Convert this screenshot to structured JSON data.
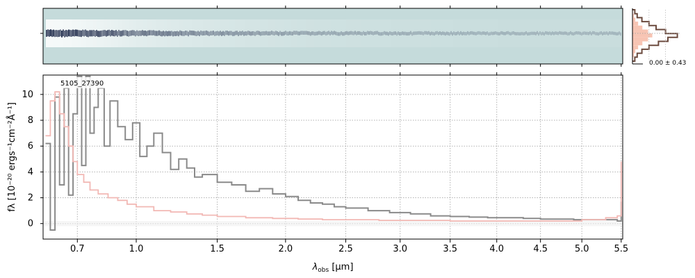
{
  "chart_data": [
    {
      "type": "heatmap",
      "panel": "2d-spectrum",
      "description_colors": {
        "background": "#c5dbdb",
        "trace_dark": "#1e2a4a",
        "trace_light": "#ffffff"
      },
      "trace_strength": [
        {
          "x": 0.55,
          "v": 1.0
        },
        {
          "x": 0.65,
          "v": 0.95
        },
        {
          "x": 0.75,
          "v": 0.85
        },
        {
          "x": 0.85,
          "v": 0.75
        },
        {
          "x": 1.0,
          "v": 0.6
        },
        {
          "x": 1.3,
          "v": 0.45
        },
        {
          "x": 1.7,
          "v": 0.32
        },
        {
          "x": 2.2,
          "v": 0.22
        },
        {
          "x": 3.0,
          "v": 0.15
        },
        {
          "x": 4.0,
          "v": 0.1
        },
        {
          "x": 5.0,
          "v": 0.08
        },
        {
          "x": 5.5,
          "v": 0.08
        }
      ]
    },
    {
      "type": "line",
      "panel": "1d-spectrum",
      "annotation": "5105_27390",
      "xlabel_math": {
        "base": "λ",
        "sub": "obs",
        "rest": " [μm]"
      },
      "ylabel_math": "fλ [10⁻²⁰ ergs⁻¹cm⁻²Å⁻¹]",
      "xlim": [
        0.55,
        5.52
      ],
      "ylim": [
        -1.2,
        11.5
      ],
      "x_ticks": [
        0.7,
        1.0,
        1.5,
        2.0,
        2.5,
        3.0,
        3.5,
        4.0,
        4.5,
        5.0,
        5.5
      ],
      "x_tick_labels": [
        "0.7",
        "1.0",
        "1.5",
        "2.0",
        "2.5",
        "3.0",
        "3.5",
        "4.0",
        "4.5",
        "5.0",
        "5.5"
      ],
      "y_ticks": [
        0,
        2,
        4,
        6,
        8,
        10
      ],
      "y_tick_labels": [
        "0",
        "2",
        "4",
        "6",
        "8",
        "10"
      ],
      "grid": true,
      "colors": {
        "data": "#8a8a8a",
        "model": "#f2b8b4"
      },
      "series": [
        {
          "name": "",
          "role": "data",
          "x": [
            0.56,
            0.58,
            0.6,
            0.62,
            0.64,
            0.66,
            0.68,
            0.7,
            0.72,
            0.74,
            0.76,
            0.78,
            0.8,
            0.83,
            0.86,
            0.9,
            0.94,
            0.98,
            1.02,
            1.06,
            1.1,
            1.15,
            1.2,
            1.25,
            1.3,
            1.35,
            1.4,
            1.5,
            1.6,
            1.7,
            1.8,
            1.9,
            2.0,
            2.1,
            2.2,
            2.3,
            2.4,
            2.5,
            2.7,
            2.9,
            3.1,
            3.3,
            3.5,
            3.7,
            3.9,
            4.1,
            4.3,
            4.5,
            4.7,
            4.9,
            5.1,
            5.3,
            5.45,
            5.5
          ],
          "y": [
            6.2,
            -0.5,
            9.8,
            3.0,
            10.5,
            2.2,
            8.5,
            11.4,
            4.5,
            11.4,
            7.0,
            9.0,
            10.5,
            6.0,
            9.5,
            7.5,
            6.5,
            7.8,
            5.2,
            6.0,
            7.0,
            5.5,
            4.2,
            5.0,
            4.3,
            3.6,
            3.8,
            3.2,
            3.0,
            2.5,
            2.7,
            2.3,
            2.1,
            1.8,
            1.6,
            1.5,
            1.3,
            1.2,
            1.0,
            0.85,
            0.75,
            0.6,
            0.55,
            0.5,
            0.45,
            0.45,
            0.4,
            0.35,
            0.35,
            0.3,
            0.3,
            0.3,
            0.2,
            1.7
          ]
        },
        {
          "name": "",
          "role": "model",
          "x": [
            0.56,
            0.58,
            0.6,
            0.62,
            0.64,
            0.66,
            0.68,
            0.7,
            0.73,
            0.76,
            0.8,
            0.85,
            0.9,
            0.95,
            1.0,
            1.1,
            1.2,
            1.3,
            1.4,
            1.5,
            1.7,
            1.9,
            2.1,
            2.3,
            2.5,
            2.8,
            3.0,
            3.5,
            4.0,
            4.5,
            5.0,
            5.3,
            5.45,
            5.5
          ],
          "y": [
            6.8,
            9.5,
            10.2,
            8.5,
            7.5,
            6.0,
            4.8,
            3.8,
            3.2,
            2.6,
            2.3,
            2.0,
            1.8,
            1.5,
            1.3,
            1.0,
            0.9,
            0.75,
            0.65,
            0.55,
            0.45,
            0.4,
            0.35,
            0.3,
            0.3,
            0.25,
            0.25,
            0.2,
            0.2,
            0.2,
            0.3,
            0.45,
            0.6,
            4.8
          ]
        }
      ]
    },
    {
      "type": "bar",
      "panel": "residual-histogram",
      "orientation": "horizontal",
      "annotation": "0.00 ± 0.43",
      "bins": [
        -3,
        -2.5,
        -2,
        -1.5,
        -1,
        -0.5,
        0,
        0.5,
        1,
        1.5,
        2,
        2.5,
        3
      ],
      "counts_data": [
        0.05,
        0.1,
        0.2,
        0.35,
        0.5,
        0.7,
        0.95,
        0.75,
        0.55,
        0.35,
        0.2,
        0.1,
        0.05
      ],
      "counts_model": [
        0.02,
        0.05,
        0.1,
        0.2,
        0.35,
        0.55,
        0.7,
        0.55,
        0.35,
        0.2,
        0.1,
        0.05,
        0.02
      ],
      "colors": {
        "outline": "#6b4a3e",
        "fill": "#f7c4b3"
      }
    }
  ]
}
